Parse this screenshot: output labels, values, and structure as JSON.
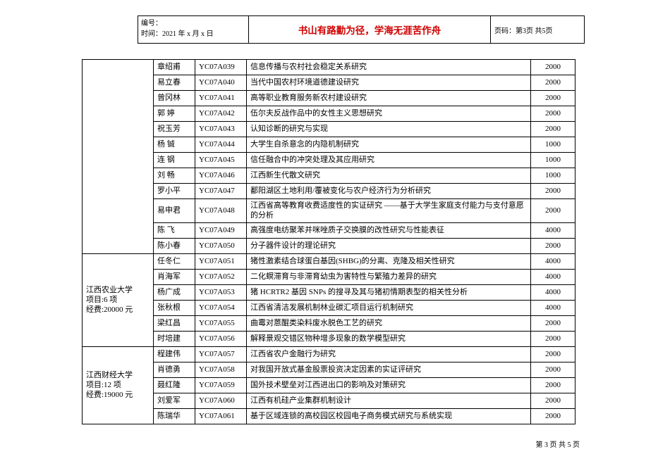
{
  "header": {
    "serial_label": "编号：",
    "time_label": "时间：2021 年 x 月 x 日",
    "center_title": "书山有路勤为径，学海无涯苦作舟",
    "page_label": "页码：第3页 共5页"
  },
  "groups": [
    {
      "lines": [
        ""
      ],
      "rows": [
        {
          "name": "章绍甫",
          "code": "YC07A039",
          "desc": "信息传播与农村社会稳定关系研究",
          "amt": "2000"
        },
        {
          "name": "易立春",
          "code": "YC07A040",
          "desc": "当代中国农村环境道德建设研究",
          "amt": "2000"
        },
        {
          "name": "曾冈林",
          "code": "YC07A041",
          "desc": "高等职业教育服务新农村建设研究",
          "amt": "2000"
        },
        {
          "name": "郭 婷",
          "code": "YC07A042",
          "desc": "伍尔夫反战作品中的女性主义思想研究",
          "amt": "2000"
        },
        {
          "name": "祝玉芳",
          "code": "YC07A043",
          "desc": "认知诊断的研究与实现",
          "amt": "2000"
        },
        {
          "name": "杨 铖",
          "code": "YC07A044",
          "desc": "大学生自杀意念的内隐机制研究",
          "amt": "1000"
        },
        {
          "name": "连 钢",
          "code": "YC07A045",
          "desc": "信任融合中的冲突处理及其应用研究",
          "amt": "1000"
        },
        {
          "name": "刘 畅",
          "code": "YC07A046",
          "desc": "江西新生代散文研究",
          "amt": "1000"
        },
        {
          "name": "罗小平",
          "code": "YC07A047",
          "desc": "鄱阳湖区土地利用/覆被变化与农户经济行为分析研究",
          "amt": "2000"
        },
        {
          "name": "易申君",
          "code": "YC07A048",
          "desc": "江西省高等教育收费适度性的实证研究 ——基于大学生家庭支付能力与支付意愿的分析",
          "amt": "2000",
          "tall": true
        },
        {
          "name": "陈 飞",
          "code": "YC07A049",
          "desc": "高强度电纺聚苯并咪唑质子交换膜的改性研究与性能表征",
          "amt": "4000"
        },
        {
          "name": "陈小春",
          "code": "YC07A050",
          "desc": "分子器件设计的理论研究",
          "amt": "2000"
        }
      ]
    },
    {
      "lines": [
        "江西农业大学",
        "项目:6 项",
        "经费:20000 元"
      ],
      "rows": [
        {
          "name": "任冬仁",
          "code": "YC07A051",
          "desc": "猪性激素结合球蛋白基因(SHBG)的分离、克隆及相关性研究",
          "amt": "4000"
        },
        {
          "name": "肖海军",
          "code": "YC07A052",
          "desc": "二化螟滞育与非滞育幼虫为害特性与繁殖力差异的研究",
          "amt": "4000"
        },
        {
          "name": "杨广成",
          "code": "YC07A053",
          "desc": "猪 HCRTR2 基因 SNPs 的搜寻及其与猪初情期表型的相关性分析",
          "amt": "4000"
        },
        {
          "name": "张秋根",
          "code": "YC07A054",
          "desc": "江西省清洁发展机制林业碳汇项目运行机制研究",
          "amt": "4000"
        },
        {
          "name": "梁红昌",
          "code": "YC07A055",
          "desc": "曲霉对蒽醌类染料废水脱色工艺的研究",
          "amt": "2000"
        },
        {
          "name": "时培建",
          "code": "YC07A056",
          "desc": "解释景观交错区物种增多现象的数学模型研究",
          "amt": "2000"
        }
      ]
    },
    {
      "lines": [
        "江西财经大学",
        "项目:12 项",
        "经费:19000 元"
      ],
      "rows": [
        {
          "name": "程建伟",
          "code": "YC07A057",
          "desc": "江西省农户金融行为研究",
          "amt": "2000"
        },
        {
          "name": "肖德勇",
          "code": "YC07A058",
          "desc": "对我国开放式基金股票投资决定因素的实证评研究",
          "amt": "2000"
        },
        {
          "name": "聂红隆",
          "code": "YC07A059",
          "desc": "国外技术壁垒对江西进出口的影响及对策研究",
          "amt": "2000"
        },
        {
          "name": "刘爱军",
          "code": "YC07A060",
          "desc": "江西有机硅产业集群机制设计",
          "amt": "2000"
        },
        {
          "name": "陈瑞华",
          "code": "YC07A061",
          "desc": "基于区域连锁的高校园区校园电子商务模式研究与系统实现",
          "amt": "2000"
        }
      ]
    }
  ],
  "footer": "第 3 页 共 5 页"
}
